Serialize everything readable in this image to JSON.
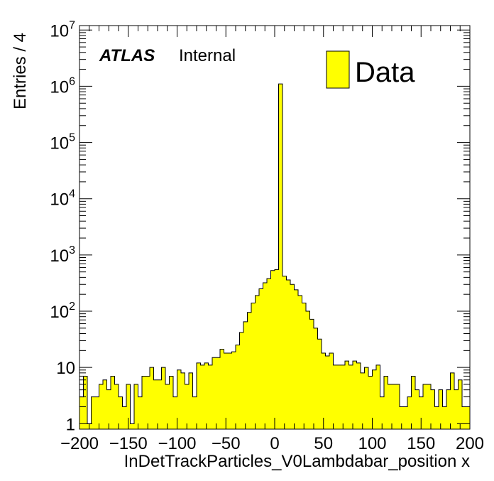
{
  "chart_data": {
    "type": "bar",
    "title": "",
    "xlabel": "InDetTrackParticles_V0Lambdabar_position x",
    "ylabel": "Entries / 4",
    "xlim": [
      -200,
      200
    ],
    "ylim": [
      0.8,
      12000000
    ],
    "yscale": "log",
    "bin_width": 4,
    "x_ticks": [
      "−200",
      "−150",
      "−100",
      "−50",
      "0",
      "50",
      "100",
      "150",
      "200"
    ],
    "x_tick_values": [
      -200,
      -150,
      -100,
      -50,
      0,
      50,
      100,
      150,
      200
    ],
    "y_ticks": [
      {
        "base": "1",
        "exp": "",
        "value": 1
      },
      {
        "base": "10",
        "exp": "",
        "value": 10
      },
      {
        "base": "10",
        "exp": "2",
        "value": 100
      },
      {
        "base": "10",
        "exp": "3",
        "value": 1000
      },
      {
        "base": "10",
        "exp": "4",
        "value": 10000
      },
      {
        "base": "10",
        "exp": "5",
        "value": 100000
      },
      {
        "base": "10",
        "exp": "6",
        "value": 1000000
      },
      {
        "base": "10",
        "exp": "7",
        "value": 10000000
      }
    ],
    "grid": false,
    "legend_position": "top-right",
    "fill_color": "#ffff00",
    "line_color": "#000000",
    "series": [
      {
        "name": "Data",
        "bin_centers": [
          -198,
          -194,
          -190,
          -186,
          -182,
          -178,
          -174,
          -170,
          -166,
          -162,
          -158,
          -154,
          -150,
          -146,
          -142,
          -138,
          -134,
          -130,
          -126,
          -122,
          -118,
          -114,
          -110,
          -106,
          -102,
          -98,
          -94,
          -90,
          -86,
          -82,
          -78,
          -74,
          -70,
          -66,
          -62,
          -58,
          -54,
          -50,
          -46,
          -42,
          -38,
          -34,
          -30,
          -26,
          -22,
          -18,
          -14,
          -10,
          -6,
          -2,
          2,
          6,
          10,
          14,
          18,
          22,
          26,
          30,
          34,
          38,
          42,
          46,
          50,
          54,
          58,
          62,
          66,
          70,
          74,
          78,
          82,
          86,
          90,
          94,
          98,
          102,
          106,
          110,
          114,
          118,
          122,
          126,
          130,
          134,
          138,
          142,
          146,
          150,
          154,
          158,
          162,
          166,
          170,
          174,
          178,
          182,
          186,
          190,
          194,
          198
        ],
        "values": [
          3,
          7,
          1,
          3,
          3,
          5,
          6,
          4,
          7,
          5,
          3,
          2,
          5,
          1,
          5,
          3,
          7,
          7,
          10,
          6,
          6,
          10,
          5,
          7,
          3,
          9,
          8,
          5,
          8,
          3,
          12,
          11,
          12,
          11,
          15,
          15,
          21,
          18,
          18,
          19,
          25,
          42,
          65,
          95,
          140,
          190,
          250,
          320,
          380,
          530,
          550,
          1100000,
          420,
          360,
          300,
          240,
          190,
          140,
          100,
          72,
          50,
          32,
          18,
          16,
          18,
          11,
          11,
          11,
          13,
          11,
          13,
          12,
          8,
          10,
          7,
          9,
          11,
          3,
          7,
          5,
          5,
          5,
          2,
          2,
          3,
          7,
          4,
          3,
          5,
          5,
          4,
          2,
          4,
          2,
          4,
          8,
          4,
          6,
          2,
          2
        ]
      }
    ],
    "annotations": {
      "experiment": "ATLAS",
      "status": "Internal"
    }
  }
}
